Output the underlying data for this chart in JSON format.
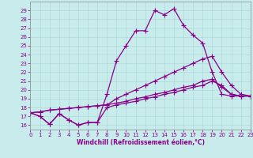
{
  "xlabel": "Windchill (Refroidissement éolien,°C)",
  "background_color": "#c8ecec",
  "grid_color": "#b0d8d8",
  "line_color": "#880088",
  "xlim": [
    0,
    23
  ],
  "ylim": [
    15.5,
    30
  ],
  "xticks": [
    0,
    1,
    2,
    3,
    4,
    5,
    6,
    7,
    8,
    9,
    10,
    11,
    12,
    13,
    14,
    15,
    16,
    17,
    18,
    19,
    20,
    21,
    22,
    23
  ],
  "yticks": [
    16,
    17,
    18,
    19,
    20,
    21,
    22,
    23,
    24,
    25,
    26,
    27,
    28,
    29
  ],
  "series": [
    {
      "x": [
        0,
        1,
        2,
        3,
        4,
        5,
        6,
        7,
        8,
        9,
        10,
        11,
        12,
        13,
        14,
        15,
        16,
        17,
        18,
        19,
        20,
        21,
        22,
        23
      ],
      "y": [
        17.4,
        17.0,
        16.1,
        17.3,
        16.6,
        16.0,
        16.3,
        16.3,
        19.5,
        23.3,
        25.0,
        26.7,
        26.7,
        29.0,
        28.5,
        29.2,
        27.3,
        26.2,
        25.3,
        22.0,
        19.5,
        19.3,
        19.3,
        19.3
      ]
    },
    {
      "x": [
        0,
        1,
        2,
        3,
        4,
        5,
        6,
        7,
        8,
        9,
        10,
        11,
        12,
        13,
        14,
        15,
        16,
        17,
        18,
        19,
        20,
        21,
        22,
        23
      ],
      "y": [
        17.4,
        17.0,
        16.1,
        17.3,
        16.6,
        16.0,
        16.3,
        16.3,
        18.0,
        18.3,
        18.5,
        18.7,
        19.0,
        19.2,
        19.5,
        19.7,
        20.0,
        20.3,
        20.5,
        21.0,
        20.5,
        19.5,
        19.3,
        19.3
      ]
    },
    {
      "x": [
        0,
        1,
        2,
        3,
        4,
        5,
        6,
        7,
        8,
        9,
        10,
        11,
        12,
        13,
        14,
        15,
        16,
        17,
        18,
        19,
        20,
        21,
        22,
        23
      ],
      "y": [
        17.4,
        17.5,
        17.7,
        17.8,
        17.9,
        18.0,
        18.1,
        18.2,
        18.3,
        18.5,
        18.7,
        19.0,
        19.2,
        19.5,
        19.7,
        20.0,
        20.3,
        20.5,
        21.0,
        21.2,
        20.3,
        19.5,
        19.3,
        19.3
      ]
    },
    {
      "x": [
        0,
        1,
        2,
        3,
        4,
        5,
        6,
        7,
        8,
        9,
        10,
        11,
        12,
        13,
        14,
        15,
        16,
        17,
        18,
        19,
        20,
        21,
        22,
        23
      ],
      "y": [
        17.4,
        17.5,
        17.7,
        17.8,
        17.9,
        18.0,
        18.1,
        18.2,
        18.3,
        19.0,
        19.5,
        20.0,
        20.5,
        21.0,
        21.5,
        22.0,
        22.5,
        23.0,
        23.5,
        23.8,
        22.0,
        20.5,
        19.5,
        19.3
      ]
    }
  ],
  "marker": "+",
  "markersize": 4,
  "linewidth": 0.9,
  "tick_labelsize": 5,
  "xlabel_fontsize": 5.5
}
